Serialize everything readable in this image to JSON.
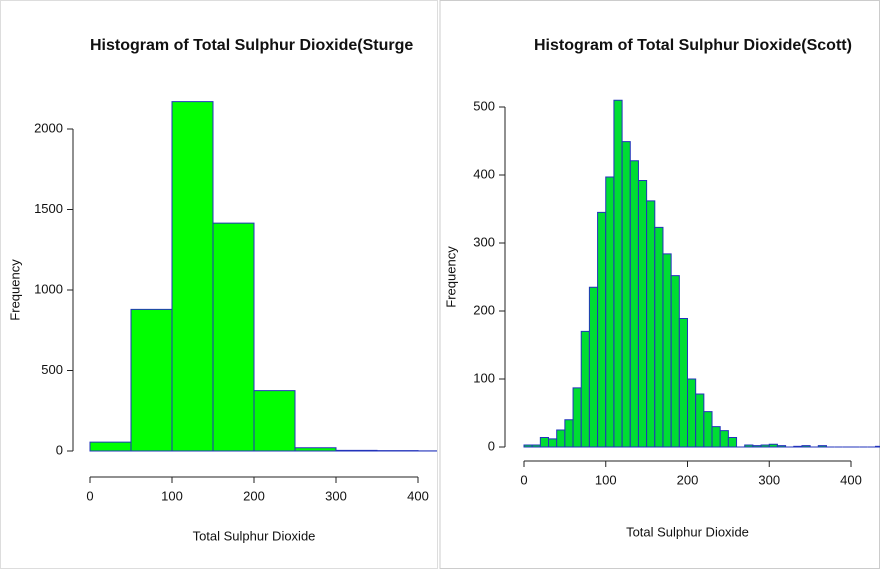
{
  "chart_data": [
    {
      "type": "histogram",
      "title": "Histogram of Total Sulphur Dioxide(Sturge",
      "x_label": "Total Sulphur Dioxide",
      "y_label": "Frequency",
      "bins": [
        0,
        50,
        100,
        150,
        200,
        250,
        300,
        350,
        400,
        450
      ],
      "counts": [
        55,
        880,
        2170,
        1415,
        375,
        20,
        4,
        2,
        1
      ],
      "color": "#00ff00",
      "edge_color": "#2233bb",
      "xlim": [
        0,
        400
      ],
      "ylim": [
        0,
        2000
      ],
      "xticks": [
        0,
        100,
        200,
        300,
        400
      ],
      "yticks": [
        0,
        500,
        1000,
        1500,
        2000
      ]
    },
    {
      "type": "histogram",
      "title": "Histogram of Total Sulphur Dioxide(Scott)",
      "x_label": "Total Sulphur Dioxide",
      "y_label": "Frequency",
      "bins": [
        0,
        10,
        20,
        30,
        40,
        50,
        60,
        70,
        80,
        90,
        100,
        110,
        120,
        130,
        140,
        150,
        160,
        170,
        180,
        190,
        200,
        210,
        220,
        230,
        240,
        250,
        260,
        270,
        280,
        290,
        300,
        310,
        320,
        330,
        340,
        350,
        360,
        370,
        380,
        390,
        400,
        410,
        420,
        430,
        440
      ],
      "counts": [
        3,
        3,
        14,
        12,
        25,
        40,
        87,
        170,
        235,
        345,
        397,
        510,
        449,
        421,
        392,
        362,
        323,
        284,
        252,
        189,
        100,
        78,
        52,
        30,
        24,
        14,
        0,
        3,
        2,
        3,
        4,
        2,
        0,
        1,
        2,
        0,
        2,
        0,
        0,
        0,
        0,
        0,
        0,
        1
      ],
      "color": "#00dd33",
      "edge_color": "#2233bb",
      "xlim": [
        0,
        400
      ],
      "ylim": [
        0,
        500
      ],
      "xticks": [
        0,
        100,
        200,
        300,
        400
      ],
      "yticks": [
        0,
        100,
        200,
        300,
        400,
        500
      ]
    }
  ]
}
